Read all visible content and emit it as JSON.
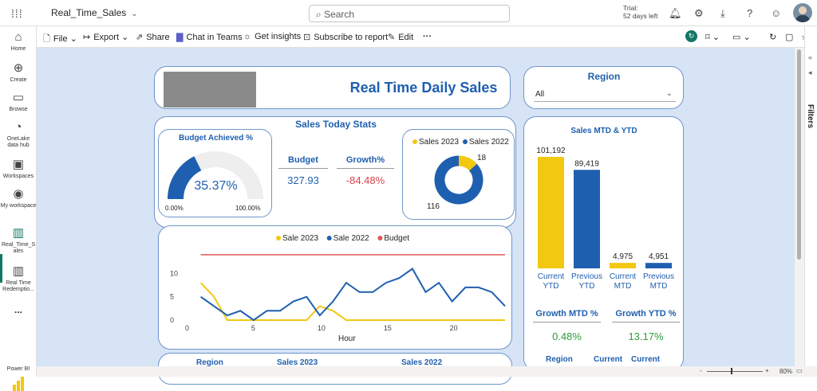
{
  "topbar": {
    "report_name": "Real_Time_Sales",
    "search_placeholder": "Search",
    "trial_line1": "Trial:",
    "trial_line2": "52 days left"
  },
  "nav": {
    "items": [
      {
        "label": "Home",
        "icon": "home-icon"
      },
      {
        "label": "Create",
        "icon": "plus-circle-icon"
      },
      {
        "label": "Browse",
        "icon": "folder-icon"
      },
      {
        "label": "OneLake data hub",
        "icon": "onelake-icon"
      },
      {
        "label": "Workspaces",
        "icon": "workspaces-icon"
      },
      {
        "label": "My workspace",
        "icon": "avatar-icon"
      },
      {
        "label": "Real_Time_S ales",
        "icon": "report-icon"
      },
      {
        "label": "Real Time Redemptio...",
        "icon": "report-icon"
      },
      {
        "label": "...",
        "icon": "more-icon"
      }
    ],
    "brand": "Power BI"
  },
  "commandbar": {
    "file": "File",
    "export": "Export",
    "share": "Share",
    "chat": "Chat in Teams",
    "insights": "Get insights",
    "subscribe": "Subscribe to report",
    "edit": "Edit",
    "more": "···"
  },
  "report": {
    "title": "Real Time Daily Sales",
    "region": {
      "title": "Region",
      "selected": "All"
    },
    "stats_title": "Sales Today Stats",
    "gauge": {
      "title": "Budget Achieved %",
      "value_text": "35.37%",
      "min": "0.00%",
      "max": "100.00%",
      "fraction": 0.3537
    },
    "budget": {
      "label": "Budget",
      "value": "327.93"
    },
    "growth": {
      "label": "Growth%",
      "value": "-84.48%"
    },
    "donut": {
      "legend": [
        "Sales 2023",
        "Sales 2022"
      ],
      "values": [
        18,
        116
      ],
      "labels": [
        "18",
        "116"
      ]
    },
    "mtd_ytd": {
      "title": "Sales MTD & YTD",
      "bars": [
        {
          "value_label": "101,192",
          "label_line1": "Current",
          "label_line2": "YTD",
          "value": 101192,
          "color": "#f2c811"
        },
        {
          "value_label": "89,419",
          "label_line1": "Previous",
          "label_line2": "YTD",
          "value": 89419,
          "color": "#1f5faf"
        },
        {
          "value_label": "4,975",
          "label_line1": "Current",
          "label_line2": "MTD",
          "value": 4975,
          "color": "#f2c811"
        },
        {
          "value_label": "4,951",
          "label_line1": "Previous",
          "label_line2": "MTD",
          "value": 4951,
          "color": "#1f5faf"
        }
      ],
      "growth_mtd_label": "Growth MTD %",
      "growth_mtd_value": "0.48%",
      "growth_ytd_label": "Growth YTD %",
      "growth_ytd_value": "13.17%"
    },
    "table_headers_left": [
      "Region",
      "Sales 2023",
      "Sales 2022"
    ],
    "table_headers_right": [
      "Region",
      "Current",
      "Current"
    ]
  },
  "status": {
    "zoom": "80%"
  },
  "colors": {
    "yellow": "#f2c811",
    "blue": "#1f5faf",
    "red": "#e05858",
    "accent_green": "#117865"
  },
  "chart_data": {
    "type": "line",
    "xlabel": "Hour",
    "ylabel": "",
    "legend": [
      "Sale 2023",
      "Sale 2022",
      "Budget"
    ],
    "xticks": [
      0,
      5,
      10,
      15,
      20
    ],
    "yticks": [
      0,
      5,
      10
    ],
    "xlim": [
      0,
      24
    ],
    "ylim": [
      0,
      15
    ],
    "series": [
      {
        "name": "Sale 2023",
        "color": "#f2c811",
        "x": [
          1,
          2,
          3,
          4,
          5,
          6,
          7,
          8,
          9,
          10,
          11,
          12,
          13,
          14,
          15,
          16,
          17,
          18,
          19,
          20,
          21,
          22,
          23,
          24
        ],
        "y": [
          8,
          5,
          0,
          0,
          0,
          0,
          0,
          0,
          0,
          3,
          2,
          0,
          0,
          0,
          0,
          0,
          0,
          0,
          0,
          0,
          0,
          0,
          0,
          0
        ]
      },
      {
        "name": "Sale 2022",
        "color": "#1f5faf",
        "x": [
          1,
          2,
          3,
          4,
          5,
          6,
          7,
          8,
          9,
          10,
          11,
          12,
          13,
          14,
          15,
          16,
          17,
          18,
          19,
          20,
          21,
          22,
          23,
          24
        ],
        "y": [
          5,
          3,
          1,
          2,
          0,
          2,
          2,
          4,
          5,
          1,
          4,
          8,
          6,
          6,
          8,
          9,
          11,
          6,
          8,
          4,
          7,
          7,
          6,
          3
        ]
      },
      {
        "name": "Budget",
        "color": "#e05858",
        "x": [
          1,
          24
        ],
        "y": [
          14,
          14
        ]
      }
    ]
  }
}
